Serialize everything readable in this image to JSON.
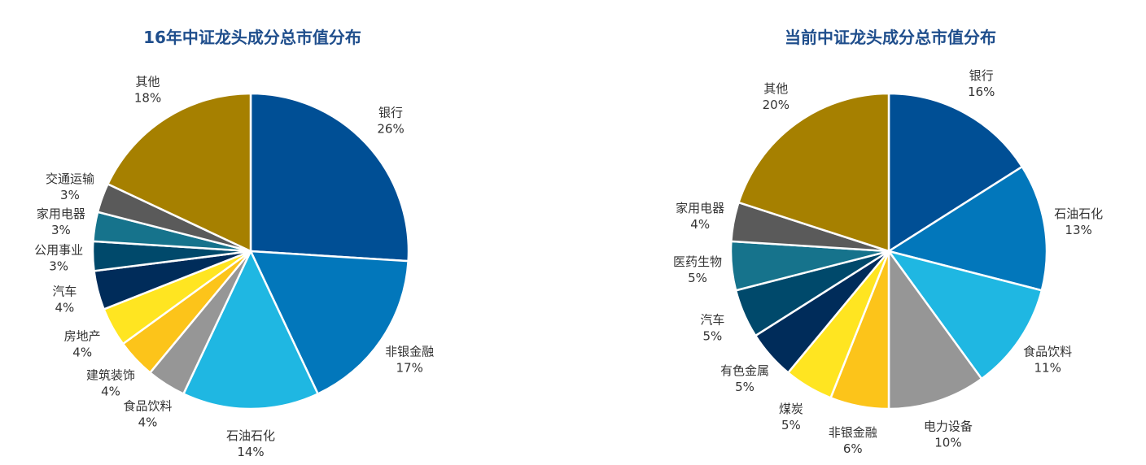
{
  "chart_data": [
    {
      "type": "pie",
      "title": "16年中证龙头成分总市值分布",
      "slices": [
        {
          "label": "银行",
          "value": 26,
          "text": "26%",
          "color": "#004f95"
        },
        {
          "label": "非银金融",
          "value": 17,
          "text": "17%",
          "color": "#0277bb"
        },
        {
          "label": "石油石化",
          "value": 14,
          "text": "14%",
          "color": "#1fb7e2"
        },
        {
          "label": "食品饮料",
          "value": 4,
          "text": "4%",
          "color": "#969696"
        },
        {
          "label": "建筑装饰",
          "value": 4,
          "text": "4%",
          "color": "#fcc41a"
        },
        {
          "label": "房地产",
          "value": 4,
          "text": "4%",
          "color": "#ffe521"
        },
        {
          "label": "汽车",
          "value": 4,
          "text": "4%",
          "color": "#002c5a"
        },
        {
          "label": "公用事业",
          "value": 3,
          "text": "3%",
          "color": "#00496b"
        },
        {
          "label": "家用电器",
          "value": 3,
          "text": "3%",
          "color": "#16738c"
        },
        {
          "label": "交通运输",
          "value": 3,
          "text": "3%",
          "color": "#5a5a5a"
        },
        {
          "label": "其他",
          "value": 18,
          "text": "18%",
          "color": "#a68000"
        }
      ]
    },
    {
      "type": "pie",
      "title": "当前中证龙头成分总市值分布",
      "slices": [
        {
          "label": "银行",
          "value": 16,
          "text": "16%",
          "color": "#004f95"
        },
        {
          "label": "石油石化",
          "value": 13,
          "text": "13%",
          "color": "#0277bb"
        },
        {
          "label": "食品饮料",
          "value": 11,
          "text": "11%",
          "color": "#1fb7e2"
        },
        {
          "label": "电力设备",
          "value": 10,
          "text": "10%",
          "color": "#969696"
        },
        {
          "label": "非银金融",
          "value": 6,
          "text": "6%",
          "color": "#fcc41a"
        },
        {
          "label": "煤炭",
          "value": 5,
          "text": "5%",
          "color": "#ffe521"
        },
        {
          "label": "有色金属",
          "value": 5,
          "text": "5%",
          "color": "#002c5a"
        },
        {
          "label": "汽车",
          "value": 5,
          "text": "5%",
          "color": "#00496b"
        },
        {
          "label": "医药生物",
          "value": 5,
          "text": "5%",
          "color": "#16738c"
        },
        {
          "label": "家用电器",
          "value": 4,
          "text": "4%",
          "color": "#5a5a5a"
        },
        {
          "label": "其他",
          "value": 20,
          "text": "20%",
          "color": "#a68000"
        }
      ]
    }
  ]
}
